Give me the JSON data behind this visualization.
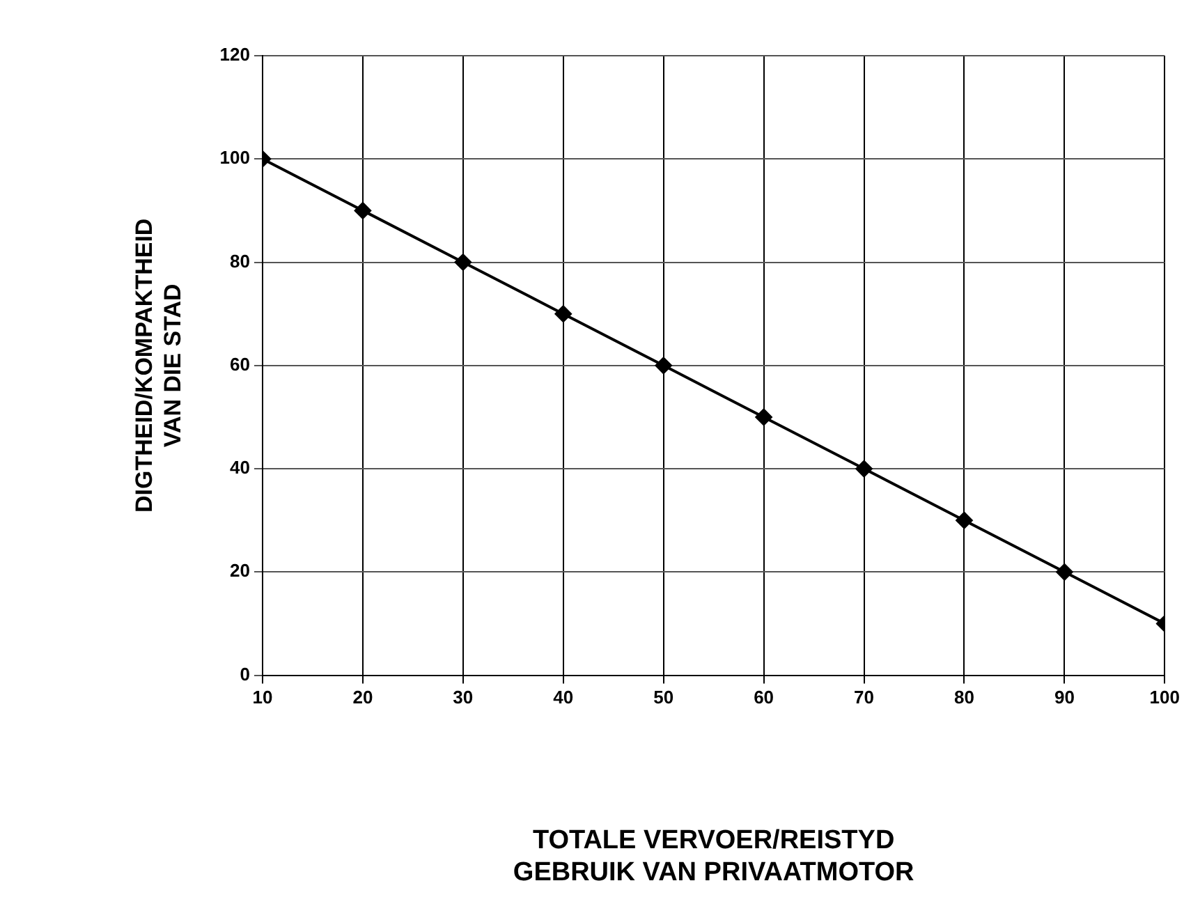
{
  "chart_data": {
    "type": "line",
    "xlabel": "TOTALE VERVOER/REISTYD\nGEBRUIK VAN PRIVAATMOTOR",
    "ylabel": "DIGTHEID/KOMPAKTHEID\nVAN DIE STAD",
    "x": [
      10,
      20,
      30,
      40,
      50,
      60,
      70,
      80,
      90,
      100
    ],
    "series": [
      {
        "color": "#000000",
        "values": [
          100,
          90,
          80,
          70,
          60,
          50,
          40,
          30,
          20,
          10
        ]
      }
    ],
    "xlim": [
      10,
      100
    ],
    "xticks": [
      10,
      20,
      30,
      40,
      50,
      60,
      70,
      80,
      90,
      100
    ],
    "ylim": [
      0,
      120
    ],
    "yticks": [
      0,
      20,
      40,
      60,
      80,
      100,
      120
    ],
    "grid": true,
    "legend": false,
    "marker": "diamond",
    "line_style": "solid"
  }
}
